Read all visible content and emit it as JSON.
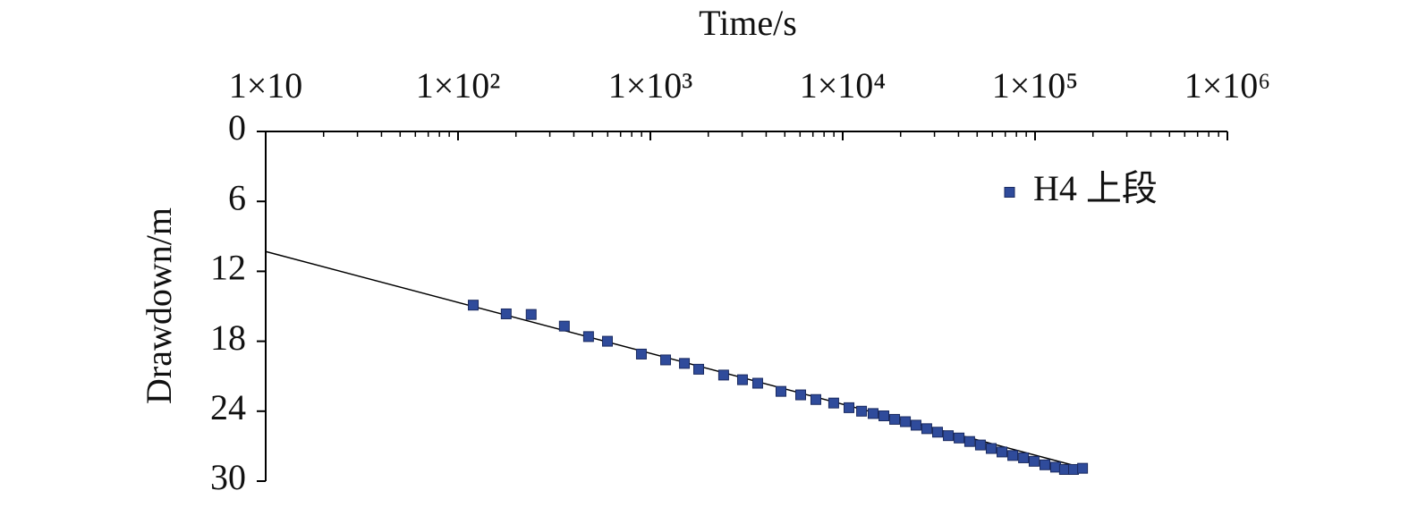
{
  "chart_data": {
    "type": "scatter",
    "x_label": "Time/s",
    "y_label": "Drawdown/m",
    "xscale": "log",
    "y_inverted": true,
    "legend": "upper right",
    "xlim": [
      10,
      1000000
    ],
    "xticks": [
      {
        "value": 10,
        "label": "1×10"
      },
      {
        "value": 100,
        "label": "1×10²"
      },
      {
        "value": 1000,
        "label": "1×10³"
      },
      {
        "value": 10000,
        "label": "1×10⁴"
      },
      {
        "value": 100000,
        "label": "1×10⁵"
      },
      {
        "value": 1000000,
        "label": "1×10⁶"
      }
    ],
    "ylim": [
      0,
      30
    ],
    "yticks": [
      0,
      6,
      12,
      18,
      24,
      30
    ],
    "series": [
      {
        "name": "H4 上段",
        "color": "#2f4b9b",
        "x": [
          120,
          178,
          240,
          357,
          477,
          598,
          898,
          1200,
          1503,
          1783,
          2404,
          3013,
          3614,
          4775,
          6045,
          7250,
          8977,
          10780,
          12530,
          14390,
          16370,
          18620,
          21180,
          24050,
          27350,
          31120,
          35400,
          40270,
          45710,
          52000,
          59160,
          67300,
          76560,
          87100,
          98850,
          112500,
          127900,
          142200,
          158500,
          176600
        ],
        "values": [
          14.9,
          15.65,
          15.7,
          16.7,
          17.6,
          18.0,
          19.1,
          19.6,
          19.9,
          20.4,
          20.9,
          21.3,
          21.6,
          22.3,
          22.6,
          23.0,
          23.3,
          23.7,
          24.0,
          24.2,
          24.4,
          24.7,
          24.9,
          25.2,
          25.5,
          25.8,
          26.1,
          26.3,
          26.6,
          26.9,
          27.2,
          27.5,
          27.8,
          28.0,
          28.3,
          28.6,
          28.8,
          29.0,
          29.0,
          28.9
        ]
      }
    ],
    "fit_line": {
      "color": "#000000",
      "x": [
        10,
        176600
      ],
      "values": [
        10.3,
        28.85
      ]
    }
  }
}
